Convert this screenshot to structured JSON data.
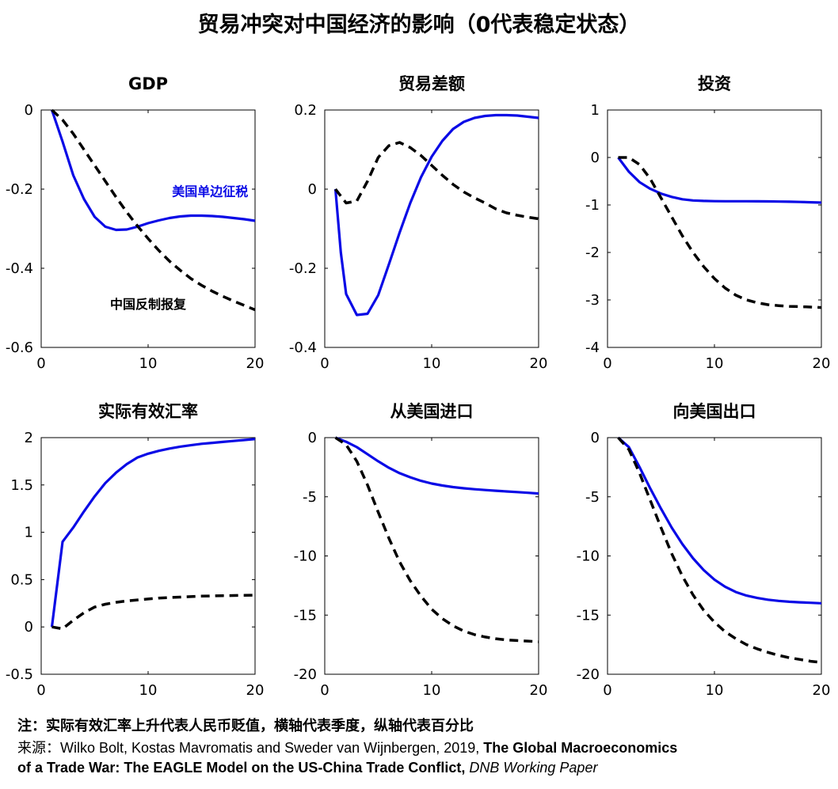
{
  "figure_title": "贸易冲突对中国经济的影响（0代表稳定状态）",
  "colors": {
    "us_tariff": "#0a0ae6",
    "china_retaliation": "#000000"
  },
  "footnotes": {
    "note": "注：实际有效汇率上升代表人民币贬值，横轴代表季度，纵轴代表百分比",
    "source_prefix": "来源：Wilko Bolt, Kostas Mavromatis and Sweder van Wijnbergen, 2019, ",
    "source_title_1": "The Global Macroeconomics",
    "source_title_2": "of a Trade War: The EAGLE Model on the US-China Trade Conflict,",
    "source_series": "DNB Working Paper"
  },
  "chart_data": [
    {
      "type": "line",
      "title": "GDP",
      "xlim": [
        0,
        20
      ],
      "ylim": [
        -0.6,
        0
      ],
      "x_ticks": [
        0,
        10,
        20
      ],
      "y_ticks": [
        0,
        -0.2,
        -0.4,
        -0.6
      ],
      "y_tick_labels": [
        "0",
        "-0.2",
        "-0.4",
        "-0.6"
      ],
      "annotations": [
        {
          "text": "美国单边征税",
          "series": "us_tariff",
          "x": 15.8,
          "y": -0.205
        },
        {
          "text": "中国反制报复",
          "series": "china_retaliation",
          "x": 10.0,
          "y": -0.49
        }
      ],
      "series": [
        {
          "key": "us_tariff",
          "style": "solid",
          "x": [
            1,
            2,
            3,
            4,
            5,
            6,
            7,
            8,
            9,
            10,
            11,
            12,
            13,
            14,
            15,
            16,
            17,
            18,
            19,
            20
          ],
          "y": [
            0,
            -0.08,
            -0.165,
            -0.225,
            -0.27,
            -0.295,
            -0.303,
            -0.302,
            -0.295,
            -0.286,
            -0.279,
            -0.273,
            -0.269,
            -0.267,
            -0.267,
            -0.268,
            -0.27,
            -0.273,
            -0.276,
            -0.28
          ]
        },
        {
          "key": "china_retaliation",
          "style": "dashed",
          "x": [
            1,
            2,
            3,
            4,
            5,
            6,
            7,
            8,
            9,
            10,
            11,
            12,
            13,
            14,
            15,
            16,
            17,
            18,
            19,
            20
          ],
          "y": [
            0,
            -0.025,
            -0.06,
            -0.1,
            -0.14,
            -0.18,
            -0.22,
            -0.258,
            -0.293,
            -0.325,
            -0.355,
            -0.382,
            -0.405,
            -0.426,
            -0.443,
            -0.458,
            -0.471,
            -0.483,
            -0.494,
            -0.505
          ]
        }
      ]
    },
    {
      "type": "line",
      "title": "贸易差额",
      "xlim": [
        0,
        20
      ],
      "ylim": [
        -0.4,
        0.2
      ],
      "x_ticks": [
        0,
        10,
        20
      ],
      "y_ticks": [
        0.2,
        0,
        -0.2,
        -0.4
      ],
      "y_tick_labels": [
        "0.2",
        "0",
        "-0.2",
        "-0.4"
      ],
      "series": [
        {
          "key": "us_tariff",
          "style": "solid",
          "x": [
            1,
            1.5,
            2,
            3,
            4,
            5,
            6,
            7,
            8,
            9,
            10,
            11,
            12,
            13,
            14,
            15,
            16,
            17,
            18,
            19,
            20
          ],
          "y": [
            0,
            -0.16,
            -0.265,
            -0.318,
            -0.315,
            -0.268,
            -0.19,
            -0.11,
            -0.035,
            0.03,
            0.082,
            0.122,
            0.152,
            0.17,
            0.18,
            0.185,
            0.187,
            0.187,
            0.186,
            0.183,
            0.18
          ]
        },
        {
          "key": "china_retaliation",
          "style": "dashed",
          "x": [
            1,
            2,
            3,
            4,
            5,
            6,
            7,
            8,
            9,
            10,
            11,
            12,
            13,
            14,
            15,
            16,
            17,
            18,
            19,
            20
          ],
          "y": [
            0,
            -0.035,
            -0.03,
            0.02,
            0.08,
            0.11,
            0.118,
            0.105,
            0.085,
            0.06,
            0.035,
            0.012,
            -0.007,
            -0.022,
            -0.035,
            -0.05,
            -0.06,
            -0.066,
            -0.071,
            -0.075
          ]
        }
      ]
    },
    {
      "type": "line",
      "title": "投资",
      "xlim": [
        0,
        20
      ],
      "ylim": [
        -4,
        1
      ],
      "x_ticks": [
        0,
        10,
        20
      ],
      "y_ticks": [
        1,
        0,
        -1,
        -2,
        -3,
        -4
      ],
      "y_tick_labels": [
        "1",
        "0",
        "-1",
        "-2",
        "-3",
        "-4"
      ],
      "series": [
        {
          "key": "us_tariff",
          "style": "solid",
          "x": [
            1,
            2,
            3,
            4,
            5,
            6,
            7,
            8,
            9,
            10,
            11,
            12,
            13,
            14,
            15,
            16,
            17,
            18,
            19,
            20
          ],
          "y": [
            0,
            -0.3,
            -0.52,
            -0.66,
            -0.76,
            -0.83,
            -0.88,
            -0.905,
            -0.915,
            -0.92,
            -0.922,
            -0.922,
            -0.922,
            -0.924,
            -0.925,
            -0.928,
            -0.932,
            -0.937,
            -0.943,
            -0.95
          ]
        },
        {
          "key": "china_retaliation",
          "style": "dashed",
          "x": [
            1,
            2,
            3,
            4,
            5,
            6,
            7,
            8,
            9,
            10,
            11,
            12,
            13,
            14,
            15,
            16,
            17,
            18,
            19,
            20
          ],
          "y": [
            0,
            0,
            -0.15,
            -0.45,
            -0.85,
            -1.25,
            -1.65,
            -2.0,
            -2.3,
            -2.55,
            -2.75,
            -2.9,
            -3.0,
            -3.06,
            -3.1,
            -3.12,
            -3.135,
            -3.14,
            -3.15,
            -3.16
          ]
        }
      ]
    },
    {
      "type": "line",
      "title": "实际有效汇率",
      "xlim": [
        0,
        20
      ],
      "ylim": [
        -0.5,
        2
      ],
      "x_ticks": [
        0,
        10,
        20
      ],
      "y_ticks": [
        2,
        1.5,
        1,
        0.5,
        0,
        -0.5
      ],
      "y_tick_labels": [
        "2",
        "1.5",
        "1",
        "0.5",
        "0",
        "-0.5"
      ],
      "series": [
        {
          "key": "us_tariff",
          "style": "solid",
          "x": [
            1,
            2,
            3,
            4,
            5,
            6,
            7,
            8,
            9,
            10,
            11,
            12,
            13,
            14,
            15,
            16,
            17,
            18,
            19,
            20
          ],
          "y": [
            0,
            0.9,
            1.05,
            1.22,
            1.38,
            1.52,
            1.63,
            1.72,
            1.79,
            1.83,
            1.86,
            1.885,
            1.905,
            1.92,
            1.935,
            1.945,
            1.955,
            1.965,
            1.975,
            1.985
          ]
        },
        {
          "key": "china_retaliation",
          "style": "dashed",
          "x": [
            1,
            2,
            3,
            4,
            5,
            6,
            7,
            8,
            9,
            10,
            11,
            12,
            13,
            14,
            15,
            16,
            17,
            18,
            19,
            20
          ],
          "y": [
            0,
            -0.02,
            0.07,
            0.15,
            0.21,
            0.24,
            0.26,
            0.275,
            0.285,
            0.295,
            0.305,
            0.31,
            0.315,
            0.32,
            0.325,
            0.328,
            0.33,
            0.332,
            0.334,
            0.335
          ]
        }
      ]
    },
    {
      "type": "line",
      "title": "从美国进口",
      "xlim": [
        0,
        20
      ],
      "ylim": [
        -20,
        0
      ],
      "x_ticks": [
        0,
        10,
        20
      ],
      "y_ticks": [
        0,
        -5,
        -10,
        -15,
        -20
      ],
      "y_tick_labels": [
        "0",
        "-5",
        "-10",
        "-15",
        "-20"
      ],
      "series": [
        {
          "key": "us_tariff",
          "style": "solid",
          "x": [
            1,
            2,
            3,
            4,
            5,
            6,
            7,
            8,
            9,
            10,
            11,
            12,
            13,
            14,
            15,
            16,
            17,
            18,
            19,
            20
          ],
          "y": [
            0,
            -0.35,
            -0.8,
            -1.4,
            -2.0,
            -2.55,
            -3.0,
            -3.35,
            -3.65,
            -3.88,
            -4.05,
            -4.18,
            -4.28,
            -4.36,
            -4.43,
            -4.49,
            -4.55,
            -4.6,
            -4.66,
            -4.72
          ]
        },
        {
          "key": "china_retaliation",
          "style": "dashed",
          "x": [
            1,
            2,
            3,
            4,
            5,
            6,
            7,
            8,
            9,
            10,
            11,
            12,
            13,
            14,
            15,
            16,
            17,
            18,
            19,
            20
          ],
          "y": [
            0,
            -0.6,
            -2.0,
            -4.0,
            -6.3,
            -8.5,
            -10.5,
            -12.1,
            -13.4,
            -14.5,
            -15.3,
            -15.9,
            -16.35,
            -16.65,
            -16.85,
            -17.0,
            -17.1,
            -17.15,
            -17.2,
            -17.25
          ]
        }
      ]
    },
    {
      "type": "line",
      "title": "向美国出口",
      "xlim": [
        0,
        20
      ],
      "ylim": [
        -20,
        0
      ],
      "x_ticks": [
        0,
        10,
        20
      ],
      "y_ticks": [
        0,
        -5,
        -10,
        -15,
        -20
      ],
      "y_tick_labels": [
        "0",
        "-5",
        "-10",
        "-15",
        "-20"
      ],
      "series": [
        {
          "key": "us_tariff",
          "style": "solid",
          "x": [
            1,
            2,
            3,
            4,
            5,
            6,
            7,
            8,
            9,
            10,
            11,
            12,
            13,
            14,
            15,
            16,
            17,
            18,
            19,
            20
          ],
          "y": [
            0,
            -0.8,
            -2.5,
            -4.3,
            -6.0,
            -7.6,
            -9.0,
            -10.2,
            -11.2,
            -12.0,
            -12.6,
            -13.05,
            -13.35,
            -13.55,
            -13.7,
            -13.8,
            -13.87,
            -13.92,
            -13.96,
            -14.0
          ]
        },
        {
          "key": "china_retaliation",
          "style": "dashed",
          "x": [
            1,
            2,
            3,
            4,
            5,
            6,
            7,
            8,
            9,
            10,
            11,
            12,
            13,
            14,
            15,
            16,
            17,
            18,
            19,
            20
          ],
          "y": [
            0,
            -1.0,
            -3.0,
            -5.3,
            -7.6,
            -9.8,
            -11.7,
            -13.3,
            -14.6,
            -15.6,
            -16.4,
            -17.0,
            -17.5,
            -17.85,
            -18.15,
            -18.4,
            -18.6,
            -18.75,
            -18.9,
            -19.0
          ]
        }
      ]
    }
  ]
}
